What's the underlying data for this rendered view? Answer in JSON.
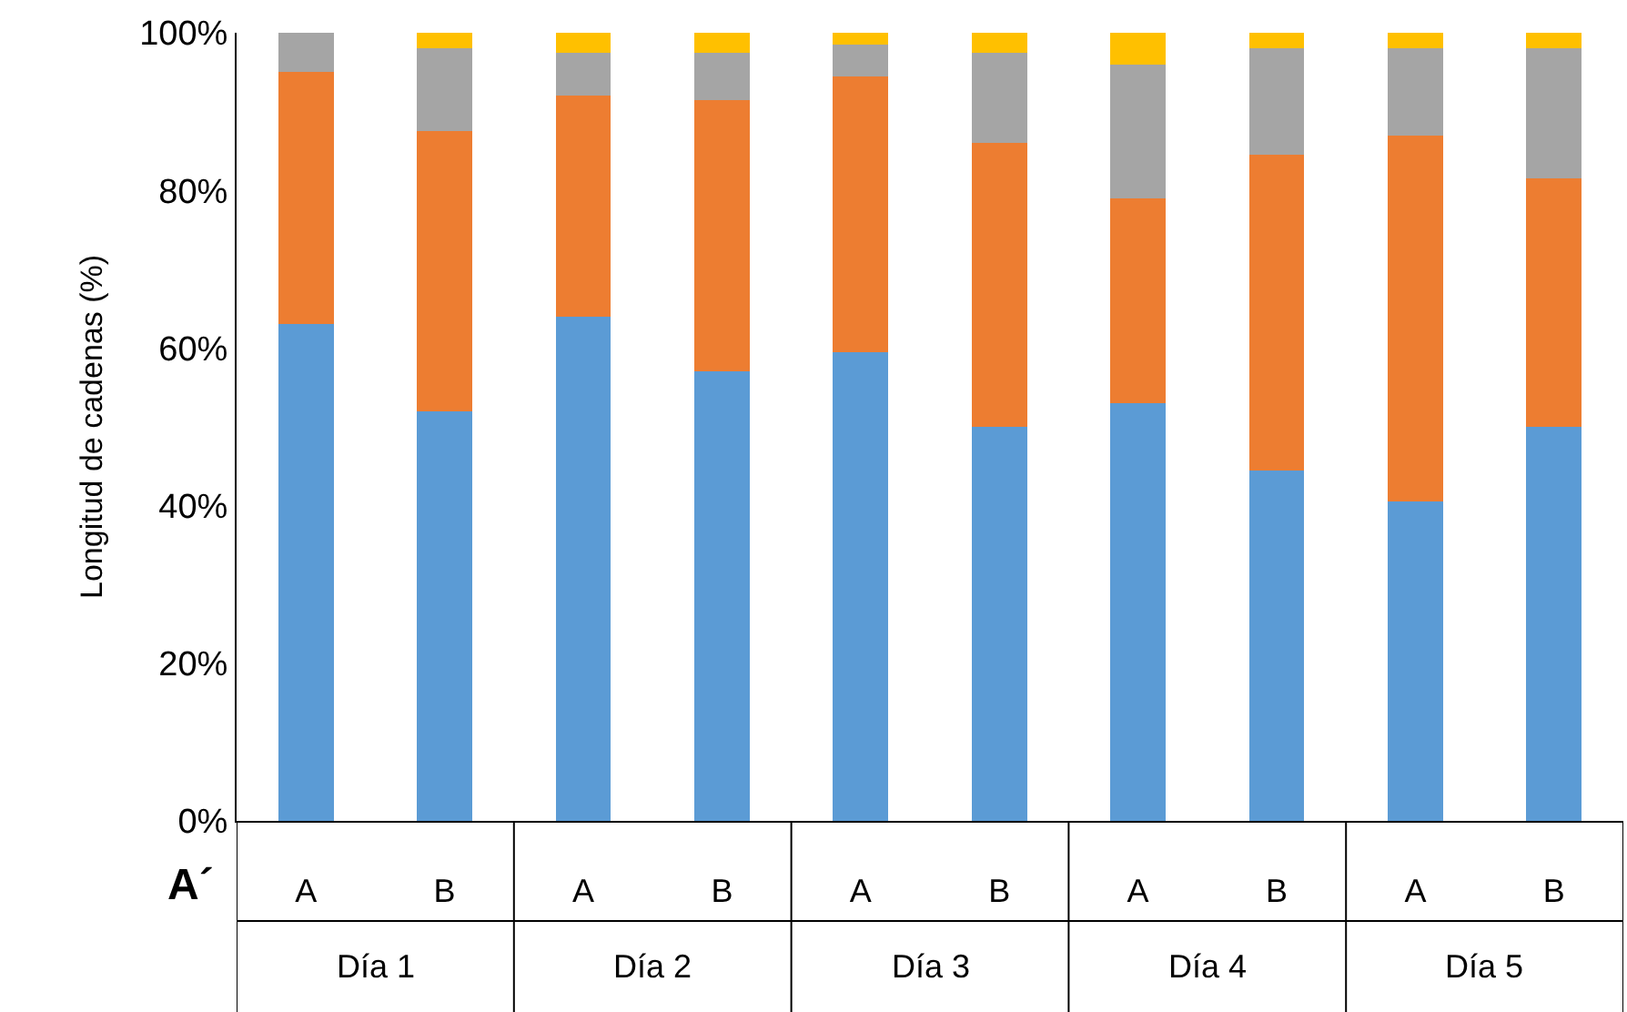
{
  "chart_data": {
    "type": "bar",
    "stacked": true,
    "ylabel": "Longitud de cadenas (%)",
    "categories": [
      "A",
      "B",
      "A",
      "B",
      "A",
      "B",
      "A",
      "B",
      "A",
      "B"
    ],
    "series": [
      {
        "color": "#5b9bd5",
        "values": [
          63,
          52,
          64,
          57,
          59.5,
          50,
          53,
          44.5,
          40.5,
          50
        ]
      },
      {
        "color": "#ed7d31",
        "values": [
          32,
          35.5,
          28,
          34.5,
          35,
          36,
          26,
          40,
          46.5,
          31.5
        ]
      },
      {
        "color": "#a5a5a5",
        "values": [
          5,
          10.5,
          5.5,
          6,
          4,
          11.5,
          17,
          13.5,
          11,
          16.5
        ]
      },
      {
        "color": "#ffc000",
        "values": [
          0,
          2,
          2.5,
          2.5,
          1.5,
          2.5,
          4,
          2,
          2,
          2
        ]
      }
    ],
    "ylim": [
      0,
      100
    ],
    "yticks": [
      {
        "value": 0,
        "label": "0%"
      },
      {
        "value": 20,
        "label": "20%"
      },
      {
        "value": 40,
        "label": "40%"
      },
      {
        "value": 60,
        "label": "60%"
      },
      {
        "value": 80,
        "label": "80%"
      },
      {
        "value": 100,
        "label": "100%"
      }
    ],
    "annotations": [
      "A´",
      "Día 1",
      "Día 2",
      "Día 3",
      "Día 4",
      "Día 5"
    ]
  }
}
